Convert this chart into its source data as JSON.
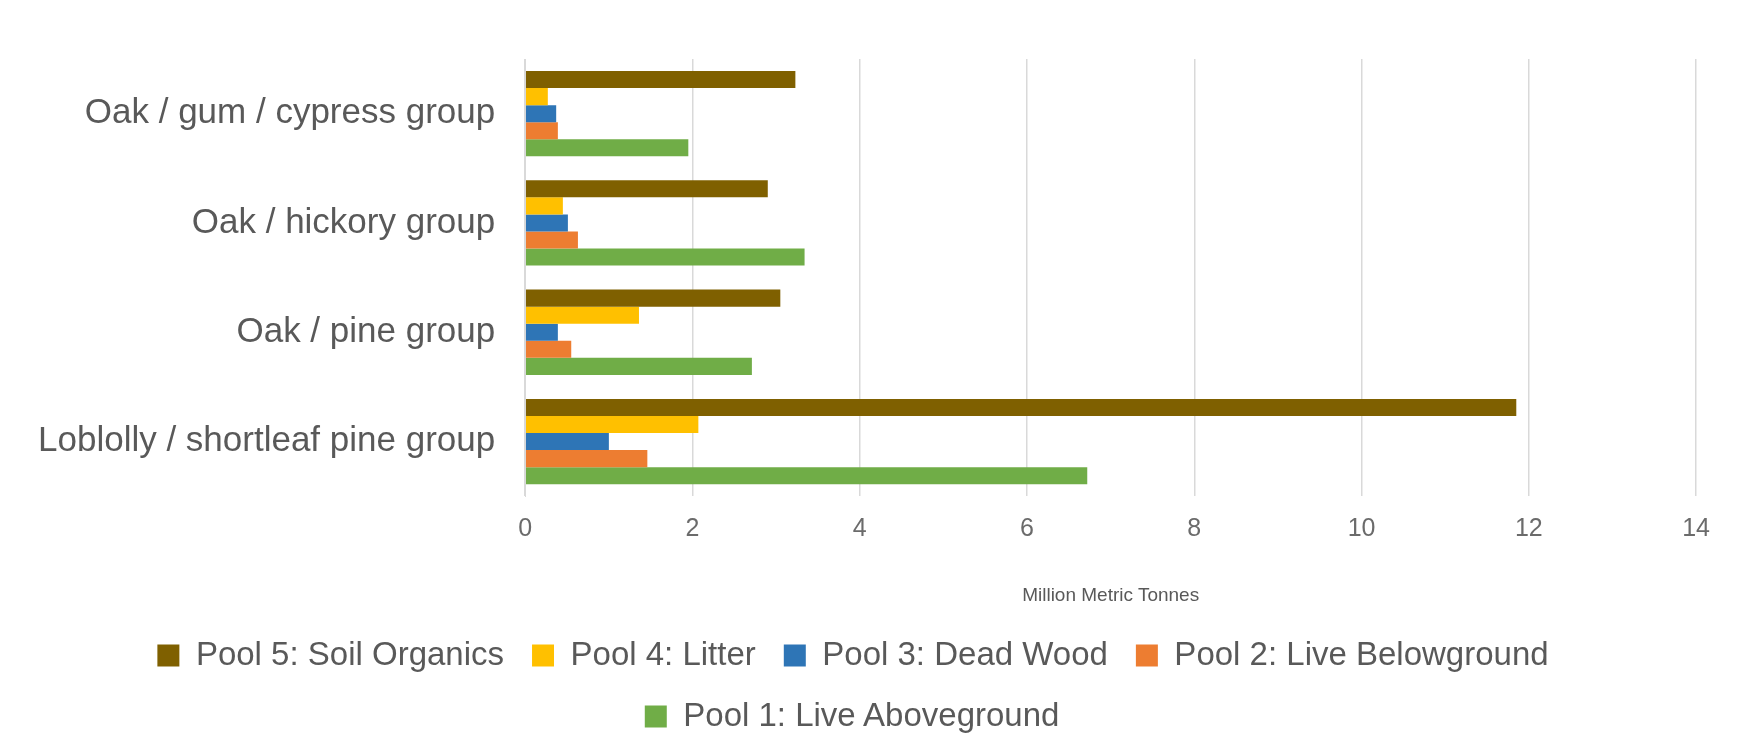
{
  "chart_data": {
    "type": "bar",
    "orientation": "horizontal",
    "xlabel": "Million Metric Tonnes",
    "categories": [
      "Oak / gum / cypress group",
      "Oak / hickory group",
      "Oak / pine group",
      "Loblolly / shortleaf pine group"
    ],
    "series": [
      {
        "name": "Pool 5: Soil Organics",
        "color": "#7f6000",
        "values": [
          3.23,
          2.9,
          3.05,
          11.85
        ]
      },
      {
        "name": "Pool 4: Litter",
        "color": "#ffc000",
        "values": [
          0.27,
          0.45,
          1.36,
          2.07
        ]
      },
      {
        "name": "Pool 3: Dead Wood",
        "color": "#2e75b6",
        "values": [
          0.37,
          0.51,
          0.39,
          1.0
        ]
      },
      {
        "name": "Pool 2: Live Belowground",
        "color": "#ed7d31",
        "values": [
          0.39,
          0.63,
          0.55,
          1.46
        ]
      },
      {
        "name": "Pool 1: Live Aboveground",
        "color": "#70ad47",
        "values": [
          1.95,
          3.34,
          2.71,
          6.72
        ]
      }
    ],
    "xlim": [
      0,
      14
    ],
    "xticks": [
      0,
      2,
      4,
      6,
      8,
      10,
      12,
      14
    ],
    "grid": "x",
    "legend": "bottom"
  }
}
